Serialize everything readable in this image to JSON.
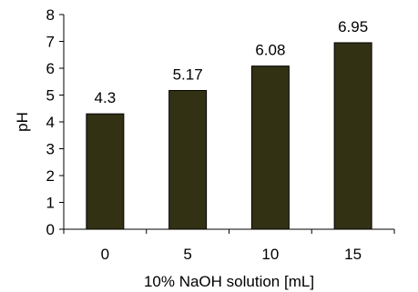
{
  "chart_data": {
    "type": "bar",
    "categories": [
      "0",
      "5",
      "10",
      "15"
    ],
    "values": [
      4.3,
      5.17,
      6.08,
      6.95
    ],
    "data_labels": [
      "4.3",
      "5.17",
      "6.08",
      "6.95"
    ],
    "title": "",
    "xlabel": "10% NaOH solution [mL]",
    "ylabel": "pH",
    "ylim": [
      0,
      8
    ],
    "y_ticks": [
      "0",
      "1",
      "2",
      "3",
      "4",
      "5",
      "6",
      "7",
      "8"
    ],
    "grid": false,
    "legend": "none",
    "colors": {
      "bar_fill": "#333114",
      "bar_stroke": "#000000",
      "axis": "#000000"
    }
  }
}
